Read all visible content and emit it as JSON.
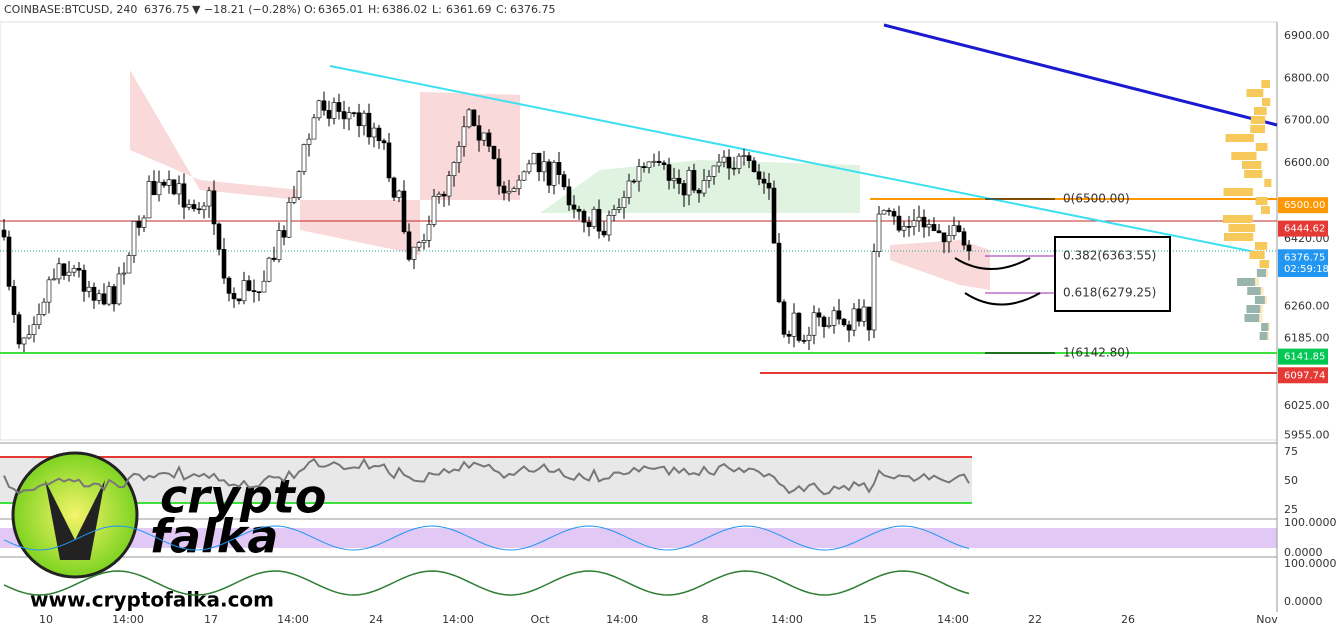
{
  "header": {
    "symbol": "COINBASE:BTCUSD, 240",
    "last": "6376.75",
    "arrow": "▼",
    "change": "−18.21 (−0.28%)",
    "ohlc": [
      {
        "key": "O:",
        "value": "6365.01"
      },
      {
        "key": "H:",
        "value": "6386.02"
      },
      {
        "key": "L:",
        "value": "6361.69"
      },
      {
        "key": "C:",
        "value": "6376.75"
      }
    ]
  },
  "price_axis": [
    "6900.00",
    "6800.00",
    "6700.00",
    "6600.00",
    "6420.00",
    "6260.00",
    "6185.00",
    "6025.00",
    "5955.00"
  ],
  "price_tags": [
    {
      "text": "6500.00",
      "color": "#ff9800"
    },
    {
      "text": "6444.62",
      "color": "#e53935"
    },
    {
      "text": "6376.75",
      "color": "#2196f3"
    },
    {
      "text": "6141.85",
      "color": "#00c853"
    },
    {
      "text": "6097.74",
      "color": "#e53935"
    }
  ],
  "countdown": "02:59:18",
  "fib": [
    "0(6500.00)",
    "0.382(6363.55)",
    "0.618(6279.25)",
    "1(6142.80)"
  ],
  "time_axis": [
    "10",
    "14:00",
    "17",
    "14:00",
    "24",
    "14:00",
    "Oct",
    "14:00",
    "8",
    "14:00",
    "15",
    "14:00",
    "22",
    "26",
    "Nov"
  ],
  "rsi_axis": [
    "75",
    "50",
    "25"
  ],
  "stoch_axis": [
    "100.0000",
    "0.0000"
  ],
  "osc_axis": [
    "100.0000",
    "0.0000"
  ],
  "watermark": {
    "line1": "crypto",
    "line2": "falka",
    "url": "www.cryptofalka.com"
  }
}
